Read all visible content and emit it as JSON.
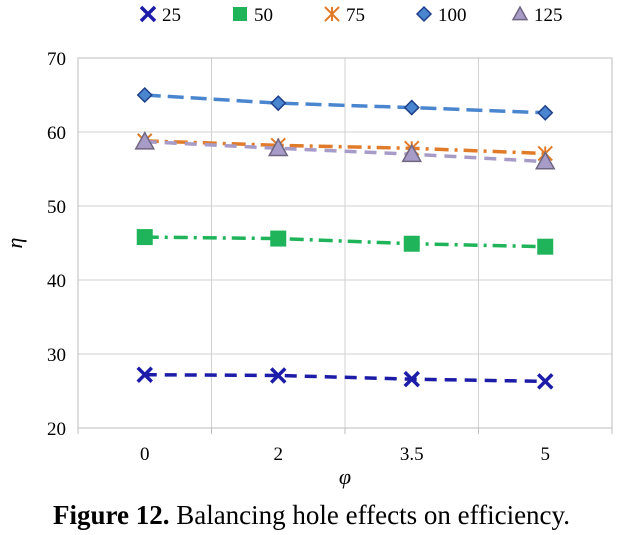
{
  "chart_data": {
    "type": "line",
    "categories": [
      "0",
      "2",
      "3.5",
      "5"
    ],
    "xlabel": "φ",
    "ylabel": "η",
    "ylim": [
      20,
      70
    ],
    "yticks": [
      "20",
      "30",
      "40",
      "50",
      "60",
      "70"
    ],
    "grid": true,
    "legend_position": "top",
    "series": [
      {
        "name": "25",
        "values": [
          27.2,
          27.1,
          26.6,
          26.3
        ],
        "color": "#1c1ca8",
        "marker": "x-marker",
        "line_style": "dashed"
      },
      {
        "name": "50",
        "values": [
          45.8,
          45.6,
          44.9,
          44.5
        ],
        "color": "#1fb45a",
        "marker": "square-marker",
        "line_style": "dash-dot"
      },
      {
        "name": "75",
        "values": [
          58.8,
          58.2,
          57.8,
          57.1
        ],
        "color": "#e07b2a",
        "marker": "star-marker",
        "line_style": "dash-dot"
      },
      {
        "name": "100",
        "values": [
          65.0,
          63.9,
          63.3,
          62.6
        ],
        "color": "#4a86cf",
        "marker": "diamond-marker",
        "line_style": "long-dash"
      },
      {
        "name": "125",
        "values": [
          58.7,
          57.8,
          57.0,
          56.0
        ],
        "color": "#a79bc8",
        "marker": "triangle-marker",
        "line_style": "dashed"
      }
    ]
  },
  "caption": {
    "label": "Figure 12.",
    "text": "Balancing hole effects on efficiency."
  }
}
